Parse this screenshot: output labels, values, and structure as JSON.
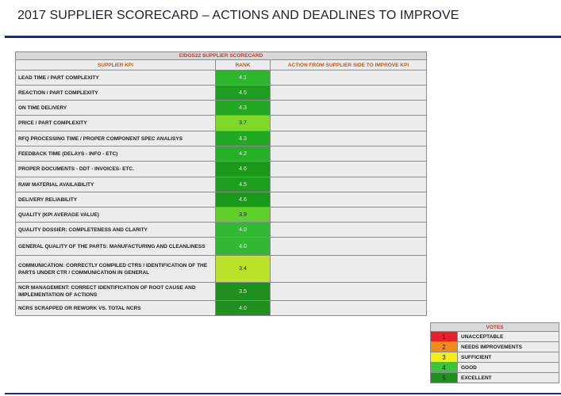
{
  "title": "2017 SUPPLIER SCORECARD – ACTIONS AND DEADLINES TO IMPROVE",
  "scorecard": {
    "heading": "EIDOS22 SUPPLIER SCORECARD",
    "col_kpi": "SUPPLIER KPI",
    "col_rank": "RANK",
    "col_action": "ACTION FROM SUPPLIER SIDE TO IMPROVE KPI",
    "rows": [
      {
        "kpi": "LEAD TIME / PART COMPLEXITY",
        "rank": "4.1",
        "color": "#2db52d"
      },
      {
        "kpi": "REACTION / PART COMPLEXITY",
        "rank": "4.5",
        "color": "#1e9e1e"
      },
      {
        "kpi": "ON TIME DELIVERY",
        "rank": "4.3",
        "color": "#22a822"
      },
      {
        "kpi": "PRICE / PART COMPLEXITY",
        "rank": "3.7",
        "color": "#7fd92a"
      },
      {
        "kpi": "RFQ PROCESSING TIME / PROPER COMPONENT SPEC ANALISYS",
        "rank": "4.3",
        "color": "#22a822"
      },
      {
        "kpi": "FEEDBACK TIME (DELAYS - INFO - ETC)",
        "rank": "4.2",
        "color": "#27ae27"
      },
      {
        "kpi": "PROPER DOCUMENTS - DDT - INVOICES- ETC.",
        "rank": "4.6",
        "color": "#1a981a"
      },
      {
        "kpi": "RAW MATERIAL AVAILABILITY",
        "rank": "4.5",
        "color": "#1e9e1e"
      },
      {
        "kpi": "DELIVERY RELIABILITY",
        "rank": "4.6",
        "color": "#1a981a"
      },
      {
        "kpi": "QUALITY (KPI AVERAGE VALUE)",
        "rank": "3.9",
        "color": "#5fcf2a"
      },
      {
        "kpi": "QUALITY DOSSIER: COMPLETENESS AND CLARITY",
        "rank": "4.0",
        "color": "#33b833"
      },
      {
        "kpi": "GENERAL QUALITY OF THE PARTS: MANUFACTURING AND CLEANLINESS",
        "rank": "4.0",
        "color": "#33b833"
      },
      {
        "kpi": "COMMUNICATION: CORRECTLY COMPILED CTRS / IDENTIFICATION OF THE PARTS UNDER CTR / COMMUNICATION IN GENERAL",
        "rank": "3.4",
        "color": "#bde22a"
      },
      {
        "kpi": "NCR MANAGEMENT: CORRECT IDENTIFICATION OF ROOT CAUSE AND IMPLEMENTATION OF ACTIONS",
        "rank": "3.5",
        "color": "#1f8f1f"
      },
      {
        "kpi": "NCRS SCRAPPED OR REWORK VS. TOTAL NCRS",
        "rank": "4.0",
        "color": "#1f8f1f"
      }
    ]
  },
  "votes": {
    "heading": "VOTES",
    "items": [
      {
        "num": "1",
        "label": "UNACCEPTABLE",
        "color": "#e8202a"
      },
      {
        "num": "2",
        "label": "NEEDS IMPROVEMENTS",
        "color": "#f28a1c"
      },
      {
        "num": "3",
        "label": "SUFFICIENT",
        "color": "#f2ee22"
      },
      {
        "num": "4",
        "label": "GOOD",
        "color": "#3cc43c"
      },
      {
        "num": "5",
        "label": "EXCELLENT",
        "color": "#1f8f1f"
      }
    ]
  }
}
